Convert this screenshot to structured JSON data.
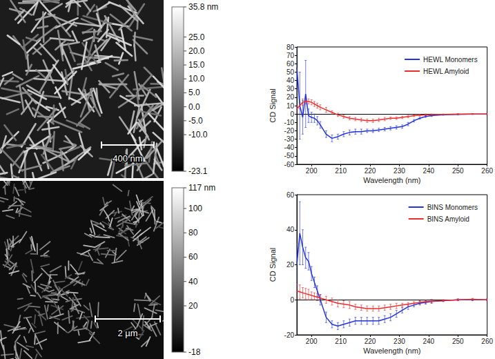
{
  "chart_data": [
    {
      "type": "line",
      "x_label": "Wavelength (nm)",
      "y_label": "CD Signal",
      "x": [
        195,
        196,
        197,
        198,
        199,
        200,
        201,
        202,
        203,
        205,
        207,
        209,
        211,
        213,
        215,
        217,
        219,
        221,
        223,
        225,
        227,
        229,
        231,
        233,
        235,
        237,
        239,
        241,
        245,
        250,
        255,
        260
      ],
      "series": [
        {
          "name": "HEWL Monomers",
          "color": "#2233dd",
          "values": [
            55,
            10,
            -4,
            24,
            -2,
            -4,
            -5,
            -8,
            -13,
            -24,
            -29,
            -27,
            -24,
            -22,
            -21,
            -21,
            -20,
            -20,
            -19,
            -18,
            -17,
            -16,
            -15,
            -12,
            -8,
            -5,
            -3,
            -2,
            -1,
            -0.5,
            0,
            0
          ],
          "errors": [
            55,
            40,
            20,
            40,
            8,
            6,
            5,
            5,
            4,
            4,
            4,
            3,
            3,
            3,
            3,
            3,
            2,
            2,
            2,
            2,
            2,
            2,
            2,
            2,
            1.5,
            1,
            1,
            1,
            0.5,
            0.5,
            0.5,
            0.5
          ]
        },
        {
          "name": "HEWL Amyloid",
          "color": "#ee2b2b",
          "values": [
            6,
            10,
            14,
            15,
            15,
            14,
            12,
            10,
            8,
            5,
            2,
            -1,
            -3,
            -5,
            -6,
            -7,
            -8,
            -8,
            -7,
            -6,
            -5,
            -5,
            -4,
            -3,
            -2,
            -1.5,
            -1,
            -1,
            -0.5,
            0,
            0,
            0
          ],
          "errors": [
            4,
            4,
            4,
            3,
            3,
            3,
            3,
            3,
            3,
            3,
            2,
            2,
            2,
            2,
            2,
            2,
            2,
            2,
            2,
            2,
            1.5,
            1.5,
            1.5,
            1.5,
            1,
            1,
            1,
            1,
            0.5,
            0.5,
            0.5,
            0.5
          ]
        }
      ],
      "xlim": [
        195,
        260
      ],
      "xticks": [
        200,
        210,
        220,
        230,
        240,
        250,
        260
      ],
      "ylim": [
        -60,
        80
      ],
      "yticks": [
        -60,
        -50,
        -40,
        -30,
        -20,
        -10,
        0,
        10,
        20,
        30,
        40,
        50,
        60,
        70,
        80
      ],
      "grid": false,
      "legend": "upper right"
    },
    {
      "type": "line",
      "x_label": "Wavelength (nm)",
      "y_label": "CD Signal",
      "x": [
        195,
        196,
        197,
        198,
        199,
        200,
        201,
        202,
        203,
        205,
        207,
        209,
        211,
        213,
        215,
        217,
        219,
        221,
        223,
        225,
        227,
        229,
        231,
        233,
        235,
        237,
        239,
        241,
        245,
        250,
        255,
        260
      ],
      "series": [
        {
          "name": "BINS Monomers",
          "color": "#2233dd",
          "values": [
            20,
            38,
            30,
            24,
            22,
            15,
            10,
            5,
            0,
            -10,
            -14,
            -15,
            -14,
            -13,
            -12,
            -12,
            -12,
            -12,
            -12,
            -11,
            -10,
            -8,
            -6,
            -4,
            -3,
            -2,
            -1.5,
            -1,
            -0.5,
            0,
            0,
            0
          ],
          "errors": [
            12,
            18,
            10,
            6,
            5,
            4,
            3,
            3,
            3,
            3,
            2,
            2,
            2,
            2,
            2,
            2,
            2,
            2,
            2,
            2,
            2,
            2,
            1.5,
            1.5,
            1,
            1,
            1,
            1,
            0.5,
            0.5,
            0.5,
            0.5
          ]
        },
        {
          "name": "BINS Amyloid",
          "color": "#ee2b2b",
          "values": [
            5,
            4.5,
            4,
            3.5,
            3,
            2.5,
            2,
            1.5,
            1,
            0,
            -1,
            -2,
            -2.5,
            -3,
            -4,
            -4.5,
            -5,
            -5,
            -5,
            -4.5,
            -4,
            -3.5,
            -3,
            -2.5,
            -2,
            -1.5,
            -1,
            -0.8,
            -0.5,
            0,
            0.3,
            0
          ],
          "errors": [
            4,
            4,
            3,
            3,
            3,
            2,
            2,
            2,
            2,
            2,
            2,
            2,
            2,
            2,
            1.5,
            1.5,
            1.5,
            1.5,
            1.5,
            1.5,
            1.5,
            1.5,
            1,
            1,
            1,
            1,
            1,
            1,
            0.5,
            0.5,
            0.5,
            0.5
          ]
        }
      ],
      "xlim": [
        195,
        260
      ],
      "xticks": [
        200,
        210,
        220,
        230,
        240,
        250,
        260
      ],
      "ylim": [
        -20,
        60
      ],
      "yticks": [
        -20,
        0,
        20,
        40,
        60
      ],
      "grid": false,
      "legend": "upper right"
    }
  ],
  "afm_images": [
    {
      "scale_bar": "400 nm",
      "colorbar": {
        "range": [
          -23.1,
          35.8
        ],
        "ticks": [
          {
            "value": 35.8,
            "label": "35.8 nm"
          },
          {
            "value": 25,
            "label": "25.0"
          },
          {
            "value": 20,
            "label": "20.0"
          },
          {
            "value": 15,
            "label": "15.0"
          },
          {
            "value": 10,
            "label": "10.0"
          },
          {
            "value": 5,
            "label": "5.0"
          },
          {
            "value": 0,
            "label": "0.0"
          },
          {
            "value": -5,
            "label": "-5.0"
          },
          {
            "value": -10,
            "label": "-10.0"
          },
          -23.1
        ]
      }
    },
    {
      "scale_bar": "2 µm",
      "colorbar": {
        "range": [
          -18,
          117
        ],
        "ticks": [
          {
            "value": 117,
            "label": "117 nm"
          },
          100,
          80,
          60,
          40,
          20,
          -18
        ]
      }
    }
  ]
}
